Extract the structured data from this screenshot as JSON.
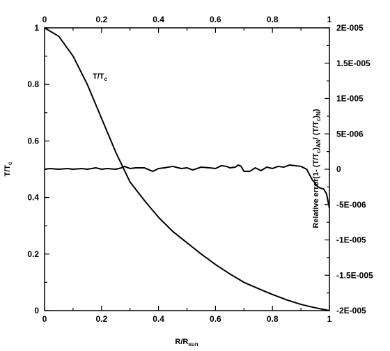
{
  "chart_data": {
    "type": "line",
    "title": "",
    "xlabel": "R/R",
    "xlabel_sub": "sun",
    "ylabel_left": "T/T",
    "ylabel_left_sub": "c",
    "ylabel_right": {
      "p1": "Relative error(1- (T/T",
      "s1": "c",
      "p2": ")",
      "s2": "AN",
      "p3": "/ (T/T",
      "s3": "c",
      "p4": ")",
      "s4": "N",
      "p5": ")"
    },
    "xlim": [
      0,
      1
    ],
    "ylim_left": [
      0,
      1
    ],
    "ylim_right": [
      -2e-05,
      2e-05
    ],
    "x_ticks": [
      "0",
      "0.2",
      "0.4",
      "0.6",
      "0.8",
      "1"
    ],
    "y_left_ticks": [
      "0",
      "0.2",
      "0.4",
      "0.6",
      "0.8",
      "1"
    ],
    "y_right_ticks": [
      "-2E-005",
      "-1.5E-005",
      "-1E-005",
      "-5E-006",
      "0",
      "5E-006",
      "1E-005",
      "1.5E-005",
      "2E-005"
    ],
    "grid": false,
    "annotations": [
      {
        "text": "T/T",
        "sub": "c"
      }
    ],
    "series": [
      {
        "axis": "left",
        "x": [
          0,
          0.05,
          0.1,
          0.15,
          0.2,
          0.25,
          0.3,
          0.35,
          0.4,
          0.45,
          0.5,
          0.55,
          0.6,
          0.65,
          0.7,
          0.75,
          0.8,
          0.85,
          0.9,
          0.95,
          1.0
        ],
        "y": [
          1.0,
          0.97,
          0.9,
          0.8,
          0.68,
          0.56,
          0.455,
          0.39,
          0.33,
          0.28,
          0.24,
          0.2,
          0.163,
          0.13,
          0.1,
          0.078,
          0.057,
          0.038,
          0.022,
          0.01,
          0.0
        ]
      },
      {
        "axis": "right",
        "x": [
          0,
          0.02,
          0.05,
          0.08,
          0.1,
          0.13,
          0.15,
          0.18,
          0.2,
          0.22,
          0.25,
          0.27,
          0.28,
          0.3,
          0.32,
          0.35,
          0.38,
          0.4,
          0.42,
          0.45,
          0.48,
          0.5,
          0.52,
          0.55,
          0.58,
          0.6,
          0.62,
          0.64,
          0.65,
          0.67,
          0.68,
          0.69,
          0.7,
          0.72,
          0.74,
          0.76,
          0.78,
          0.8,
          0.82,
          0.84,
          0.86,
          0.88,
          0.9,
          0.92,
          0.94,
          0.95,
          0.96,
          0.97,
          0.98,
          0.99,
          1.0
        ],
        "y": [
          0.0,
          1e-07,
          0.0,
          1e-07,
          0.0,
          1e-07,
          0.0,
          2e-07,
          0.0,
          1e-07,
          0.0,
          2e-07,
          4e-07,
          1e-07,
          2e-07,
          2e-07,
          -3e-07,
          1e-07,
          2e-07,
          4e-07,
          1e-07,
          2e-07,
          -1e-07,
          3e-07,
          2e-07,
          1e-07,
          5e-07,
          4e-07,
          2e-07,
          3e-07,
          6e-07,
          4e-07,
          -3e-07,
          -3e-07,
          2e-07,
          -2e-07,
          3e-07,
          1e-07,
          4e-07,
          3e-07,
          6e-07,
          5e-07,
          4e-07,
          0.0,
          -1.5e-06,
          -2e-06,
          -2.5e-06,
          -2.7e-06,
          -2.8e-06,
          -3.5e-06,
          -5.5e-06
        ]
      }
    ]
  }
}
